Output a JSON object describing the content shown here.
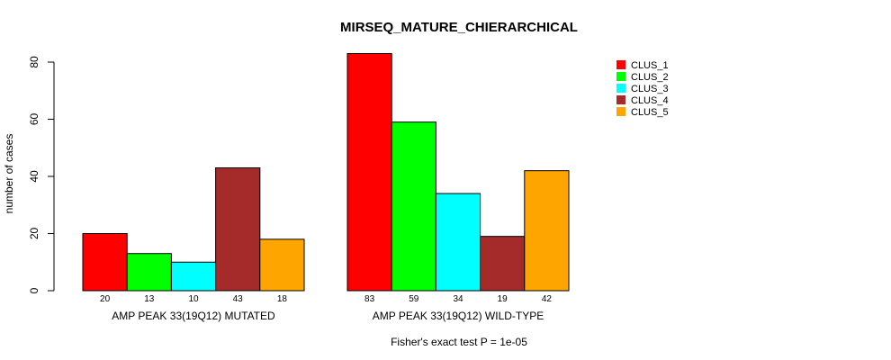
{
  "chart_data": {
    "type": "bar",
    "title": "MIRSEQ_MATURE_CHIERARCHICAL",
    "ylabel": "number of cases",
    "ylim": [
      0,
      80
    ],
    "yticks": [
      0,
      20,
      40,
      60,
      80
    ],
    "groups": [
      "AMP PEAK 33(19Q12) MUTATED",
      "AMP PEAK 33(19Q12) WILD-TYPE"
    ],
    "series": [
      {
        "name": "CLUS_1",
        "color": "#ff0000",
        "values": [
          20,
          83
        ]
      },
      {
        "name": "CLUS_2",
        "color": "#00ff00",
        "values": [
          13,
          59
        ]
      },
      {
        "name": "CLUS_3",
        "color": "#00ffff",
        "values": [
          10,
          34
        ]
      },
      {
        "name": "CLUS_4",
        "color": "#a52a2a",
        "values": [
          43,
          19
        ]
      },
      {
        "name": "CLUS_5",
        "color": "#ffa500",
        "values": [
          18,
          42
        ]
      }
    ],
    "bar_labels": [
      [
        "20",
        "13",
        "10",
        "43",
        "18"
      ],
      [
        "83",
        "59",
        "34",
        "19",
        "42"
      ]
    ],
    "footnote": "Fisher's exact test P = 1e-05",
    "legend_position": "top-right",
    "grid": false
  }
}
